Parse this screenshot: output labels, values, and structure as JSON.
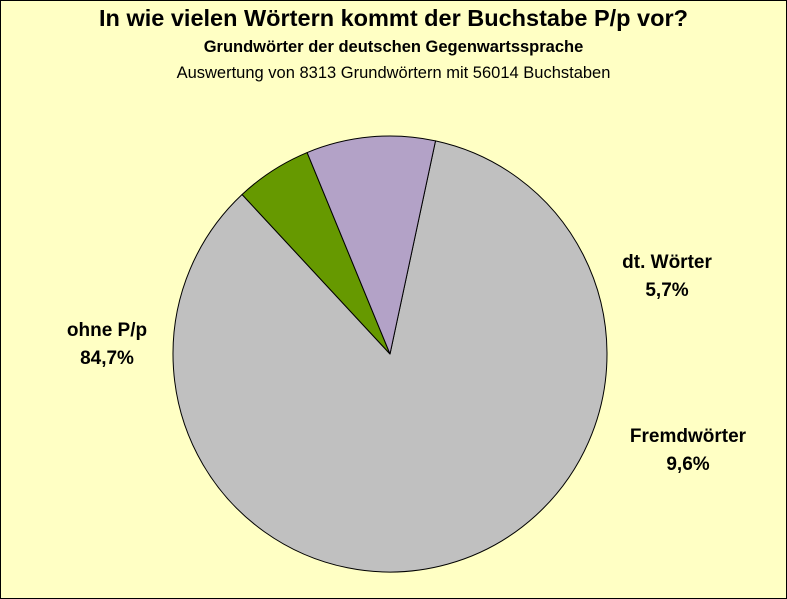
{
  "chart_data": {
    "type": "pie",
    "title": "In wie vielen Wörtern kommt der Buchstabe P/p vor?",
    "subtitle": "Grundwörter der deutschen Gegenwartssprache",
    "note": "Auswertung von 8313 Grundwörtern mit 56014 Buchstaben",
    "slices": [
      {
        "label": "ohne P/p",
        "value": 84.7,
        "value_label": "84,7%",
        "color": "#c0c0c0"
      },
      {
        "label": "dt. Wörter",
        "value": 5.7,
        "value_label": "5,7%",
        "color": "#669900"
      },
      {
        "label": "Fremdwörter",
        "value": 9.6,
        "value_label": "9,6%",
        "color": "#b3a2c7"
      }
    ]
  }
}
